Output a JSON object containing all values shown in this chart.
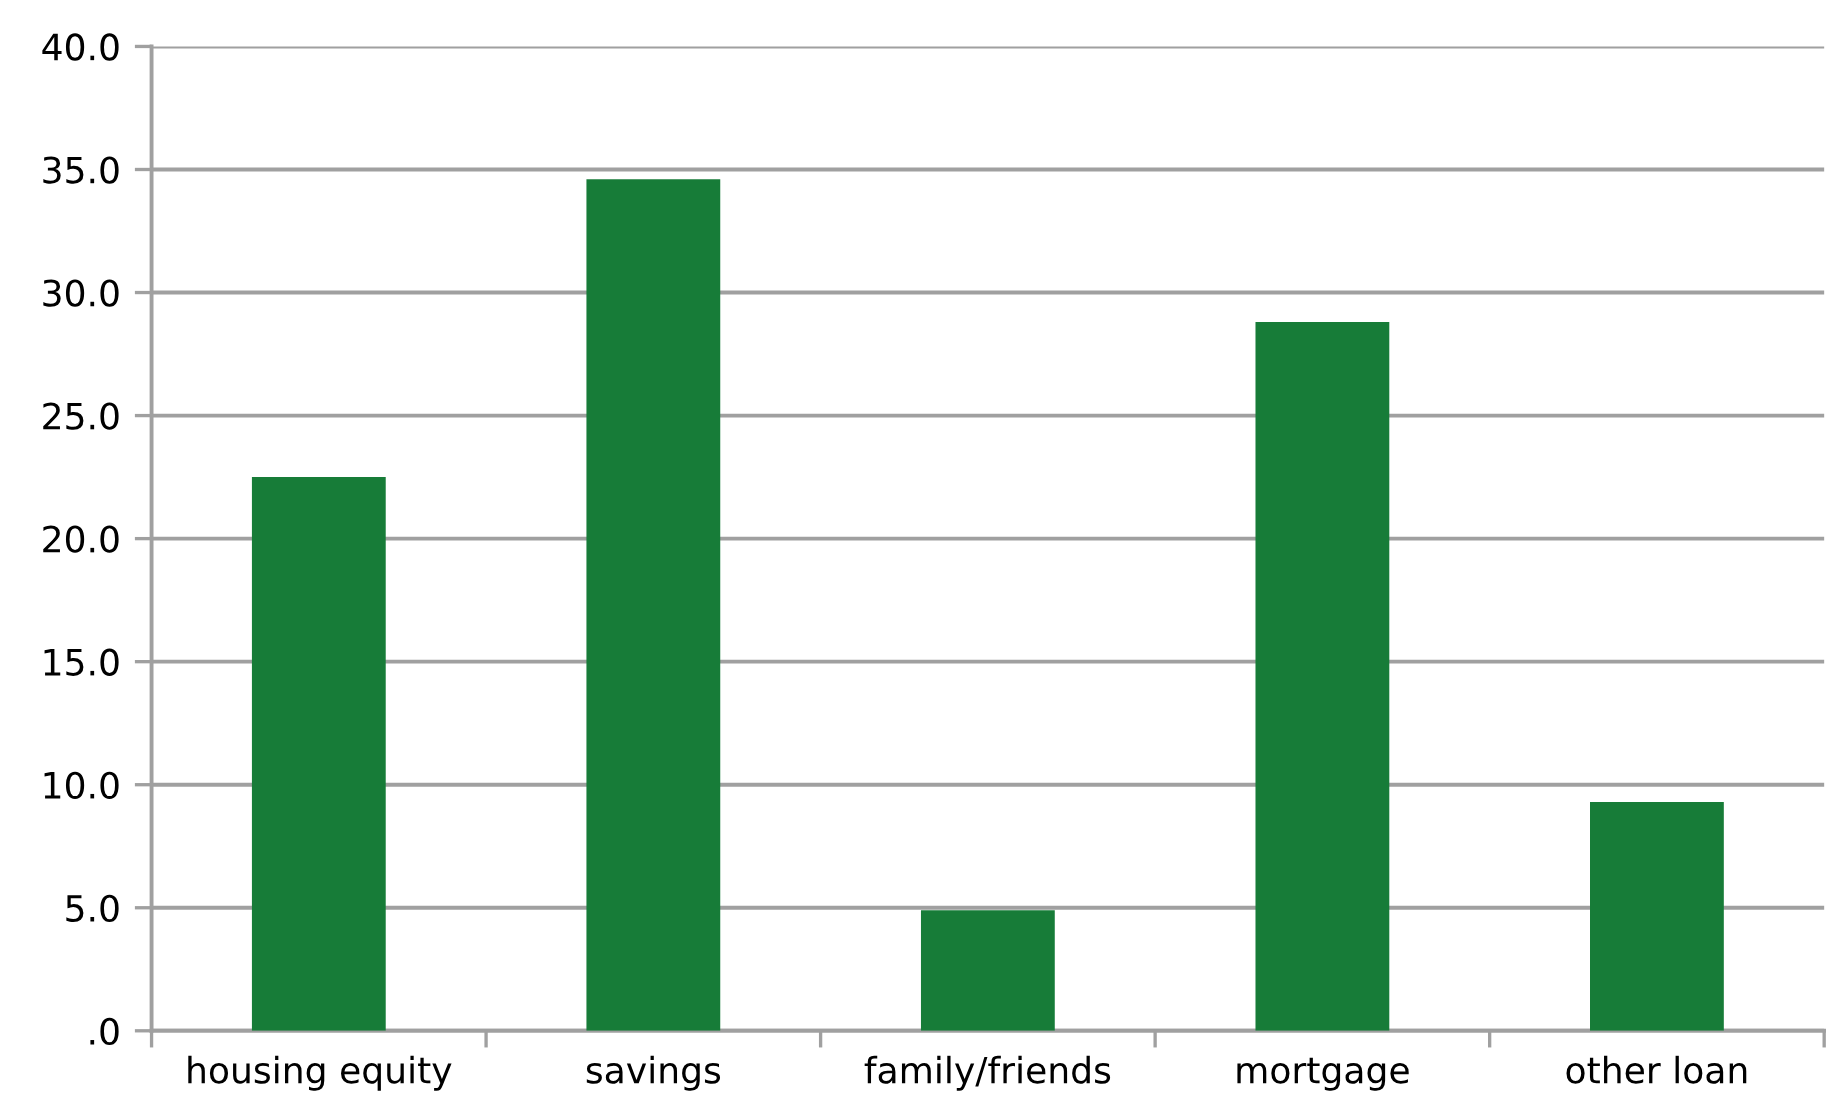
{
  "chart_data": {
    "type": "bar",
    "categories": [
      "housing equity",
      "savings",
      "family/friends",
      "mortgage",
      "other loan"
    ],
    "values": [
      22.5,
      34.6,
      4.9,
      28.8,
      9.3
    ],
    "color": "#177c38",
    "ylim": [
      0,
      40
    ],
    "yticks": [
      {
        "value": 0,
        "label": ".0"
      },
      {
        "value": 5,
        "label": "5.0"
      },
      {
        "value": 10,
        "label": "10.0"
      },
      {
        "value": 15,
        "label": "15.0"
      },
      {
        "value": 20,
        "label": "20.0"
      },
      {
        "value": 25,
        "label": "25.0"
      },
      {
        "value": 30,
        "label": "30.0"
      },
      {
        "value": 35,
        "label": "35.0"
      },
      {
        "value": 40,
        "label": "40.0"
      }
    ],
    "grid": "y"
  }
}
